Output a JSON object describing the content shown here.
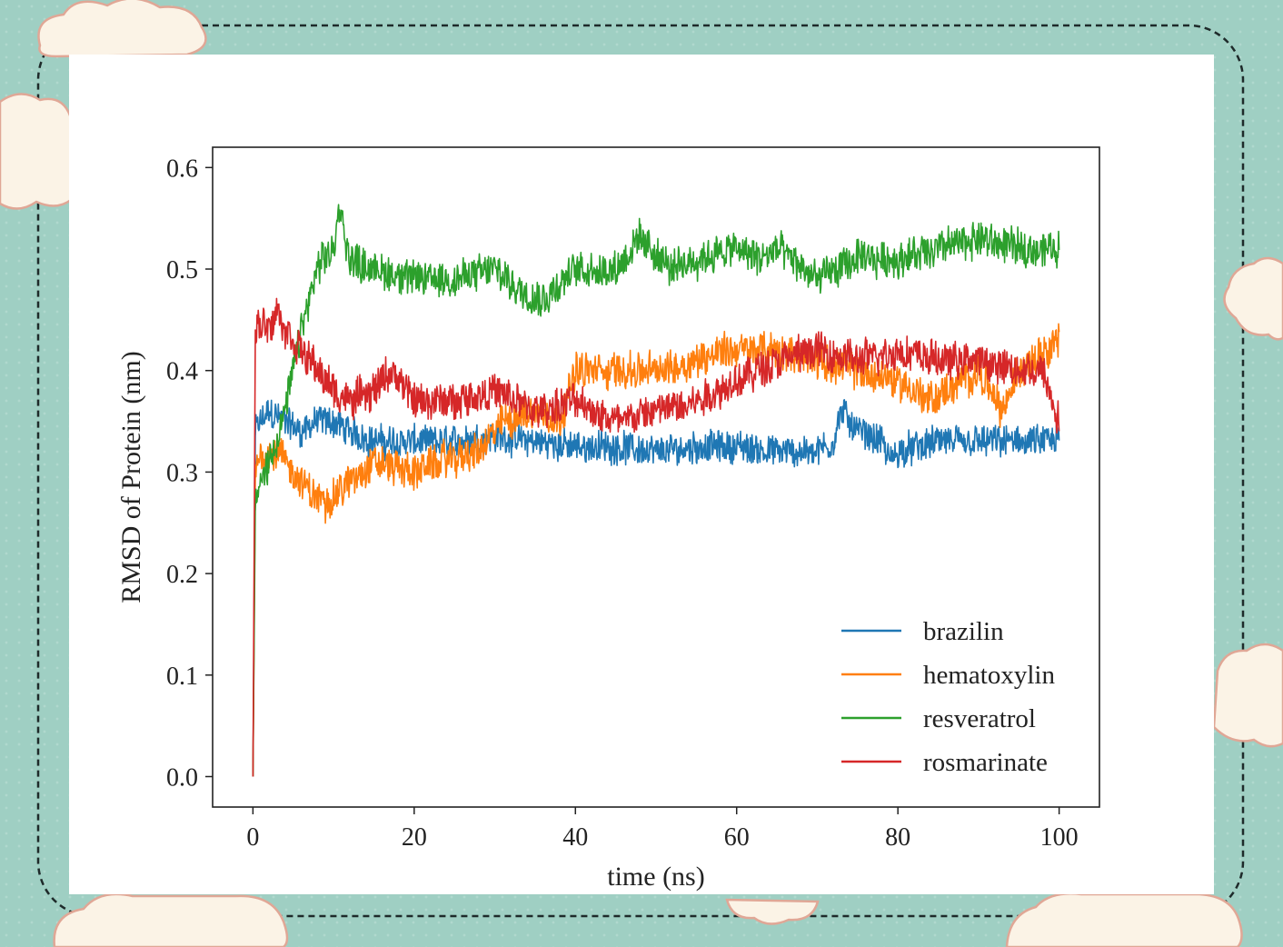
{
  "colors": {
    "background": "#9fcfc3",
    "panel": "#ffffff",
    "cloud": "#fbf3e6",
    "cloud_outline": "#e0a796"
  },
  "chart_data": {
    "type": "line",
    "title": "",
    "xlabel": "time (ns)",
    "ylabel": "RMSD of Protein (nm)",
    "xlim": [
      -5,
      105
    ],
    "ylim": [
      -0.03,
      0.62
    ],
    "xticks": [
      0,
      20,
      40,
      60,
      80,
      100
    ],
    "xtick_labels": [
      "0",
      "20",
      "40",
      "60",
      "80",
      "100"
    ],
    "yticks": [
      0.0,
      0.1,
      0.2,
      0.3,
      0.4,
      0.5,
      0.6
    ],
    "ytick_labels": [
      "0.0",
      "0.1",
      "0.2",
      "0.3",
      "0.4",
      "0.5",
      "0.6"
    ],
    "grid": false,
    "legend_position": "bottom-right",
    "series": [
      {
        "name": "brazilin",
        "color": "#1f77b4",
        "noise": 0.014,
        "x": [
          0,
          0.3,
          1,
          2,
          4,
          6,
          8,
          10,
          12,
          15,
          18,
          20,
          25,
          30,
          35,
          40,
          45,
          50,
          55,
          60,
          65,
          70,
          72,
          73,
          75,
          78,
          79,
          80,
          85,
          90,
          95,
          100
        ],
        "y": [
          0.0,
          0.34,
          0.35,
          0.36,
          0.35,
          0.34,
          0.35,
          0.35,
          0.34,
          0.33,
          0.33,
          0.33,
          0.33,
          0.335,
          0.33,
          0.325,
          0.325,
          0.32,
          0.325,
          0.325,
          0.32,
          0.32,
          0.33,
          0.36,
          0.34,
          0.33,
          0.31,
          0.32,
          0.33,
          0.33,
          0.33,
          0.33
        ]
      },
      {
        "name": "hematoxylin",
        "color": "#ff7f0e",
        "noise": 0.016,
        "x": [
          0,
          0.3,
          1,
          3,
          5,
          7,
          9,
          12,
          15,
          20,
          23,
          28,
          31,
          35,
          38,
          40,
          45,
          50,
          55,
          58,
          60,
          65,
          70,
          75,
          80,
          82,
          84,
          86,
          90,
          93,
          95,
          98,
          100
        ],
        "y": [
          0.0,
          0.3,
          0.32,
          0.32,
          0.3,
          0.28,
          0.27,
          0.29,
          0.31,
          0.3,
          0.31,
          0.32,
          0.35,
          0.36,
          0.35,
          0.4,
          0.4,
          0.4,
          0.41,
          0.42,
          0.42,
          0.42,
          0.41,
          0.4,
          0.39,
          0.38,
          0.37,
          0.38,
          0.4,
          0.36,
          0.4,
          0.42,
          0.43
        ]
      },
      {
        "name": "resveratrol",
        "color": "#2ca02c",
        "noise": 0.016,
        "x": [
          0,
          0.3,
          1,
          2,
          4,
          6,
          8,
          10,
          10.8,
          12,
          15,
          20,
          25,
          30,
          33,
          36,
          40,
          45,
          48,
          52,
          55,
          60,
          63,
          65,
          70,
          75,
          80,
          85,
          90,
          95,
          100
        ],
        "y": [
          0.0,
          0.27,
          0.29,
          0.31,
          0.36,
          0.44,
          0.5,
          0.52,
          0.56,
          0.51,
          0.5,
          0.49,
          0.49,
          0.5,
          0.48,
          0.47,
          0.5,
          0.5,
          0.53,
          0.5,
          0.51,
          0.52,
          0.51,
          0.52,
          0.49,
          0.51,
          0.51,
          0.52,
          0.53,
          0.52,
          0.52
        ]
      },
      {
        "name": "rosmarinate",
        "color": "#d62728",
        "noise": 0.016,
        "x": [
          0,
          0.3,
          1,
          2,
          3,
          4,
          6,
          8,
          10,
          12,
          15,
          17,
          20,
          25,
          30,
          35,
          40,
          45,
          50,
          55,
          60,
          65,
          70,
          75,
          80,
          85,
          90,
          95,
          98,
          100
        ],
        "y": [
          0.0,
          0.44,
          0.45,
          0.44,
          0.46,
          0.44,
          0.42,
          0.4,
          0.38,
          0.37,
          0.38,
          0.4,
          0.37,
          0.37,
          0.38,
          0.36,
          0.37,
          0.35,
          0.36,
          0.37,
          0.39,
          0.41,
          0.42,
          0.41,
          0.42,
          0.41,
          0.41,
          0.4,
          0.4,
          0.35
        ]
      }
    ]
  }
}
